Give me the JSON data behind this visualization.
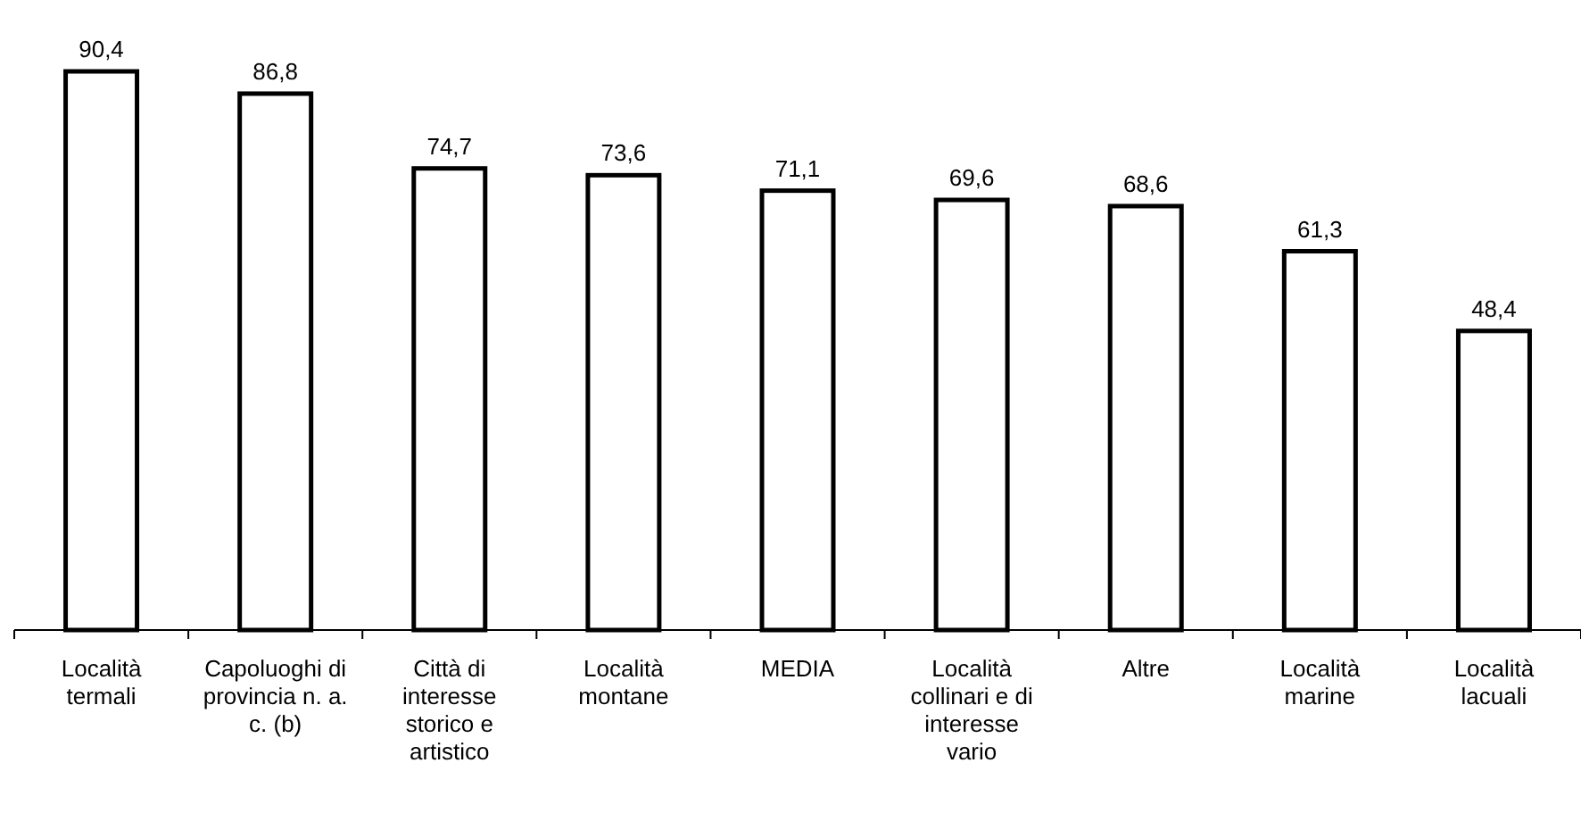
{
  "chart_data": {
    "type": "bar",
    "categories": [
      "Località termali",
      "Capoluoghi di provincia n. a. c. (b)",
      "Città di interesse storico e artistico",
      "Località montane",
      "MEDIA",
      "Località collinari e di interesse vario",
      "Altre",
      "Località marine",
      "Località lacuali"
    ],
    "values": [
      90.4,
      86.8,
      74.7,
      73.6,
      71.1,
      69.6,
      68.6,
      61.3,
      48.4
    ],
    "value_labels": [
      "90,4",
      "86,8",
      "74,7",
      "73,6",
      "71,1",
      "69,6",
      "68,6",
      "61,3",
      "48,4"
    ],
    "color": "#ffffff"
  }
}
